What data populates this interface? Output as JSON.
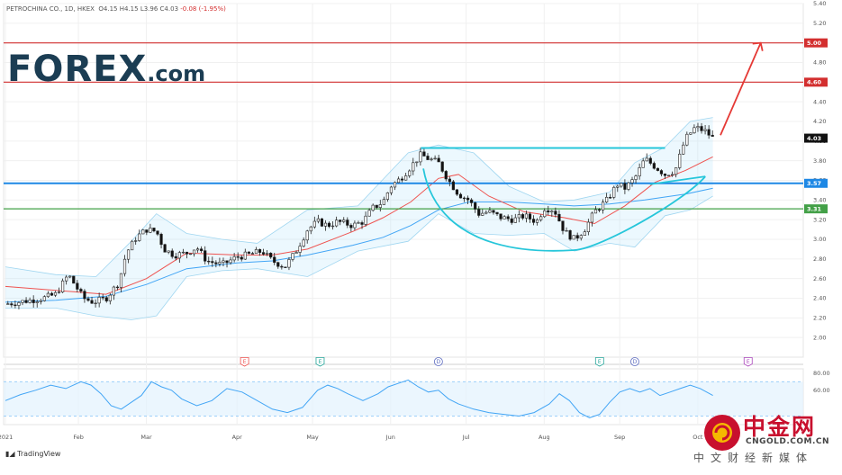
{
  "header": {
    "symbol": "PETROCHINA CO., 1D, HKEX",
    "open": "O4.15",
    "high": "H4.15",
    "low": "L3.96",
    "close": "C4.03",
    "change": "-0.08 (-1.95%)"
  },
  "logo": {
    "name": "FOREX",
    "suffix": ".com"
  },
  "footer": {
    "brand": "TradingView"
  },
  "watermark": {
    "title": "中金网",
    "url": "CNGOLD.COM.CN",
    "subtitle": "中文财经新媒体"
  },
  "colors": {
    "up": "#ffffff",
    "down": "#111111",
    "sma": "#ef5350",
    "ema": "#42a5f5",
    "band": "#b3e5fc",
    "resistance": "#d32f2f",
    "support": "#1e88e5",
    "cup": "#26c6da",
    "greenline": "#43a047",
    "rsi": "#42a5f5"
  },
  "chart_data": [
    {
      "type": "candlestick",
      "title": "",
      "ylim": [
        1.8,
        5.4
      ],
      "y_ticks": [
        "5.40",
        "5.20",
        "5.00",
        "4.80",
        "4.60",
        "4.40",
        "4.20",
        "4.00",
        "3.80",
        "3.60",
        "3.40",
        "3.20",
        "3.00",
        "2.80",
        "2.60",
        "2.40",
        "2.20",
        "2.00"
      ],
      "x_ticks": [
        "2021",
        "Feb",
        "Mar",
        "Apr",
        "May",
        "Jun",
        "Jul",
        "Aug",
        "Sep",
        "Oct"
      ],
      "x_tick_days": [
        0,
        29,
        56,
        92,
        122,
        153,
        183,
        214,
        244,
        275
      ],
      "last_day": 284,
      "close_series_points": [
        [
          0,
          2.34
        ],
        [
          5,
          2.36
        ],
        [
          10,
          2.38
        ],
        [
          15,
          2.4
        ],
        [
          20,
          2.44
        ],
        [
          25,
          2.64
        ],
        [
          28,
          2.52
        ],
        [
          31,
          2.4
        ],
        [
          35,
          2.36
        ],
        [
          40,
          2.4
        ],
        [
          45,
          2.56
        ],
        [
          48,
          2.86
        ],
        [
          52,
          3.02
        ],
        [
          56,
          3.1
        ],
        [
          60,
          3.08
        ],
        [
          63,
          2.9
        ],
        [
          67,
          2.84
        ],
        [
          72,
          2.86
        ],
        [
          76,
          2.92
        ],
        [
          80,
          2.78
        ],
        [
          86,
          2.74
        ],
        [
          92,
          2.82
        ],
        [
          96,
          2.84
        ],
        [
          102,
          2.88
        ],
        [
          106,
          2.78
        ],
        [
          111,
          2.72
        ],
        [
          115,
          2.86
        ],
        [
          120,
          3.1
        ],
        [
          124,
          3.18
        ],
        [
          128,
          3.14
        ],
        [
          132,
          3.18
        ],
        [
          138,
          3.14
        ],
        [
          142,
          3.18
        ],
        [
          146,
          3.32
        ],
        [
          150,
          3.38
        ],
        [
          153,
          3.54
        ],
        [
          157,
          3.62
        ],
        [
          161,
          3.74
        ],
        [
          165,
          3.86
        ],
        [
          168,
          3.82
        ],
        [
          172,
          3.78
        ],
        [
          176,
          3.6
        ],
        [
          180,
          3.46
        ],
        [
          184,
          3.4
        ],
        [
          188,
          3.26
        ],
        [
          192,
          3.28
        ],
        [
          197,
          3.22
        ],
        [
          202,
          3.2
        ],
        [
          206,
          3.24
        ],
        [
          211,
          3.18
        ],
        [
          214,
          3.32
        ],
        [
          218,
          3.3
        ],
        [
          222,
          3.08
        ],
        [
          226,
          3.0
        ],
        [
          230,
          3.1
        ],
        [
          234,
          3.28
        ],
        [
          239,
          3.4
        ],
        [
          243,
          3.56
        ],
        [
          246,
          3.52
        ],
        [
          250,
          3.62
        ],
        [
          254,
          3.82
        ],
        [
          258,
          3.74
        ],
        [
          262,
          3.66
        ],
        [
          266,
          3.7
        ],
        [
          270,
          4.02
        ],
        [
          274,
          4.14
        ],
        [
          278,
          4.1
        ],
        [
          281,
          4.03
        ]
      ],
      "sma_points": [
        [
          0,
          2.52
        ],
        [
          20,
          2.48
        ],
        [
          40,
          2.44
        ],
        [
          56,
          2.6
        ],
        [
          72,
          2.86
        ],
        [
          92,
          2.84
        ],
        [
          106,
          2.84
        ],
        [
          120,
          2.9
        ],
        [
          138,
          3.08
        ],
        [
          150,
          3.22
        ],
        [
          161,
          3.38
        ],
        [
          172,
          3.62
        ],
        [
          180,
          3.66
        ],
        [
          192,
          3.44
        ],
        [
          206,
          3.28
        ],
        [
          222,
          3.22
        ],
        [
          234,
          3.16
        ],
        [
          246,
          3.34
        ],
        [
          258,
          3.58
        ],
        [
          270,
          3.7
        ],
        [
          281,
          3.84
        ]
      ],
      "ema_points": [
        [
          0,
          2.36
        ],
        [
          20,
          2.38
        ],
        [
          40,
          2.42
        ],
        [
          56,
          2.54
        ],
        [
          72,
          2.7
        ],
        [
          92,
          2.76
        ],
        [
          106,
          2.78
        ],
        [
          120,
          2.84
        ],
        [
          138,
          2.94
        ],
        [
          150,
          3.02
        ],
        [
          161,
          3.14
        ],
        [
          172,
          3.3
        ],
        [
          184,
          3.38
        ],
        [
          200,
          3.38
        ],
        [
          214,
          3.36
        ],
        [
          226,
          3.34
        ],
        [
          240,
          3.36
        ],
        [
          254,
          3.4
        ],
        [
          270,
          3.46
        ],
        [
          281,
          3.52
        ]
      ],
      "bollinger_upper": [
        [
          0,
          2.72
        ],
        [
          20,
          2.64
        ],
        [
          36,
          2.62
        ],
        [
          50,
          2.98
        ],
        [
          60,
          3.26
        ],
        [
          72,
          3.06
        ],
        [
          86,
          3.0
        ],
        [
          100,
          2.96
        ],
        [
          120,
          3.3
        ],
        [
          140,
          3.34
        ],
        [
          160,
          3.88
        ],
        [
          172,
          3.96
        ],
        [
          186,
          3.88
        ],
        [
          200,
          3.54
        ],
        [
          214,
          3.38
        ],
        [
          226,
          3.4
        ],
        [
          240,
          3.48
        ],
        [
          250,
          3.78
        ],
        [
          262,
          3.94
        ],
        [
          272,
          4.2
        ],
        [
          281,
          4.24
        ]
      ],
      "bollinger_lower": [
        [
          0,
          2.3
        ],
        [
          20,
          2.3
        ],
        [
          36,
          2.22
        ],
        [
          50,
          2.18
        ],
        [
          60,
          2.22
        ],
        [
          72,
          2.62
        ],
        [
          86,
          2.68
        ],
        [
          100,
          2.7
        ],
        [
          120,
          2.62
        ],
        [
          140,
          2.88
        ],
        [
          160,
          2.98
        ],
        [
          172,
          3.26
        ],
        [
          186,
          3.06
        ],
        [
          200,
          3.04
        ],
        [
          214,
          3.06
        ],
        [
          226,
          2.88
        ],
        [
          240,
          2.96
        ],
        [
          250,
          2.92
        ],
        [
          262,
          3.24
        ],
        [
          272,
          3.3
        ],
        [
          281,
          3.44
        ]
      ],
      "levels": [
        {
          "value": 5.0,
          "label": "5.00",
          "color": "#d32f2f"
        },
        {
          "value": 4.6,
          "label": "4.60",
          "color": "#d32f2f"
        },
        {
          "value": 3.57,
          "label": "3.57",
          "color": "#1e88e5"
        },
        {
          "value": 3.31,
          "label": "3.31",
          "color": "#43a047"
        }
      ],
      "last_price": {
        "value": 4.03,
        "label": "4.03"
      },
      "resistance_segment": {
        "from": [
          165,
          3.93
        ],
        "to": [
          262,
          3.93
        ]
      },
      "cup_curve": {
        "start": [
          166,
          3.72
        ],
        "bottom": [
          226,
          2.89
        ],
        "end": [
          278,
          3.64
        ]
      },
      "handle_segment": {
        "from": [
          256,
          3.56
        ],
        "to": [
          278,
          3.64
        ]
      },
      "forecast_arrow": {
        "from": [
          284,
          4.06
        ],
        "to": [
          300,
          5.0
        ]
      },
      "event_markers": [
        {
          "day": 95,
          "label": "E",
          "color": "#ef5350"
        },
        {
          "day": 125,
          "label": "E",
          "color": "#26a69a"
        },
        {
          "day": 172,
          "label": "D",
          "color": "#5c6bc0"
        },
        {
          "day": 236,
          "label": "E",
          "color": "#26a69a"
        },
        {
          "day": 250,
          "label": "D",
          "color": "#5c6bc0"
        },
        {
          "day": 295,
          "label": "E",
          "color": "#ab47bc"
        }
      ]
    },
    {
      "type": "line",
      "title": "",
      "ylim": [
        20,
        85
      ],
      "y_ticks": [
        "80.00",
        "60.00"
      ],
      "band": [
        30,
        70
      ],
      "points": [
        [
          0,
          48
        ],
        [
          6,
          55
        ],
        [
          12,
          60
        ],
        [
          18,
          66
        ],
        [
          24,
          62
        ],
        [
          30,
          70
        ],
        [
          34,
          66
        ],
        [
          38,
          56
        ],
        [
          42,
          42
        ],
        [
          46,
          38
        ],
        [
          50,
          46
        ],
        [
          54,
          54
        ],
        [
          58,
          70
        ],
        [
          62,
          64
        ],
        [
          66,
          60
        ],
        [
          70,
          50
        ],
        [
          76,
          42
        ],
        [
          82,
          48
        ],
        [
          88,
          62
        ],
        [
          94,
          58
        ],
        [
          100,
          48
        ],
        [
          106,
          38
        ],
        [
          112,
          34
        ],
        [
          118,
          40
        ],
        [
          124,
          60
        ],
        [
          128,
          66
        ],
        [
          132,
          62
        ],
        [
          136,
          56
        ],
        [
          142,
          48
        ],
        [
          148,
          56
        ],
        [
          152,
          64
        ],
        [
          156,
          68
        ],
        [
          160,
          72
        ],
        [
          164,
          64
        ],
        [
          168,
          58
        ],
        [
          172,
          60
        ],
        [
          176,
          50
        ],
        [
          180,
          44
        ],
        [
          186,
          38
        ],
        [
          192,
          34
        ],
        [
          198,
          32
        ],
        [
          204,
          30
        ],
        [
          210,
          34
        ],
        [
          216,
          44
        ],
        [
          220,
          56
        ],
        [
          224,
          48
        ],
        [
          228,
          34
        ],
        [
          232,
          28
        ],
        [
          236,
          32
        ],
        [
          240,
          46
        ],
        [
          244,
          58
        ],
        [
          248,
          62
        ],
        [
          252,
          58
        ],
        [
          256,
          62
        ],
        [
          260,
          54
        ],
        [
          264,
          58
        ],
        [
          268,
          62
        ],
        [
          272,
          66
        ],
        [
          276,
          62
        ],
        [
          281,
          54
        ]
      ]
    }
  ]
}
